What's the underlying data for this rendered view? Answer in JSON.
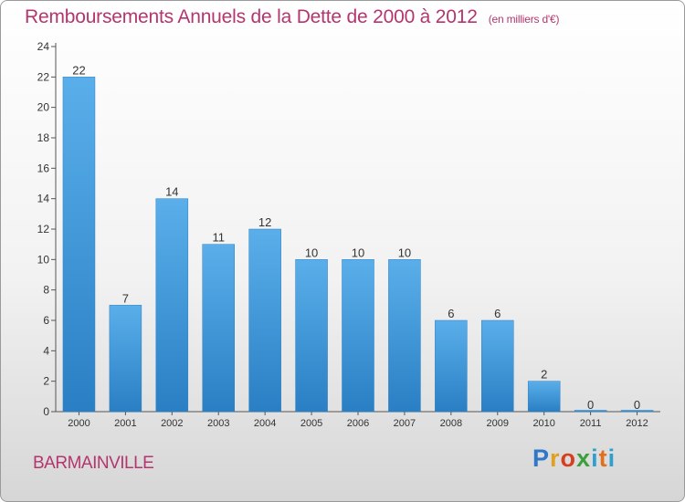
{
  "title": "Remboursements Annuels de la Dette de 2000 à 2012",
  "subtitle": "(en milliers d'€)",
  "place_name": "BARMAINVILLE",
  "logo_text": "Proxiti",
  "colors": {
    "title": "#b3366f",
    "bar_top": "#5aafea",
    "bar_bottom": "#2a7fc4"
  },
  "chart_data": {
    "type": "bar",
    "categories": [
      "2000",
      "2001",
      "2002",
      "2003",
      "2004",
      "2005",
      "2006",
      "2007",
      "2008",
      "2009",
      "2010",
      "2011",
      "2012"
    ],
    "values": [
      22,
      7,
      14,
      11,
      12,
      10,
      10,
      10,
      6,
      6,
      2,
      0,
      0
    ],
    "ylim": [
      0,
      24
    ],
    "yticks": [
      0,
      2,
      4,
      6,
      8,
      10,
      12,
      14,
      16,
      18,
      20,
      22,
      24
    ],
    "grid": false,
    "data_labels": true
  }
}
